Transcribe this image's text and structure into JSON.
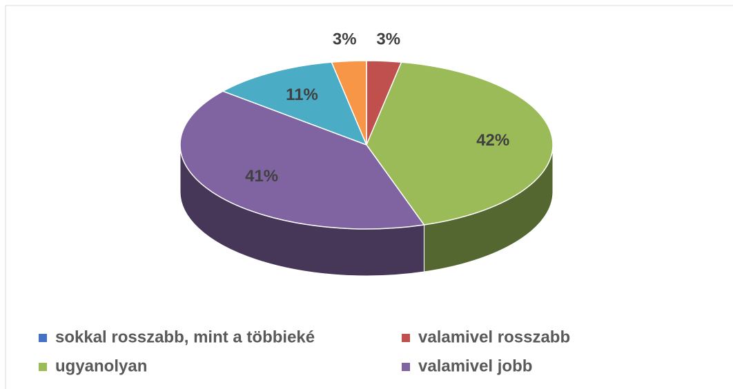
{
  "chart_data": {
    "type": "pie3d",
    "categories": [
      "sokkal rosszabb, mint a többieké",
      "valamivel rosszabb",
      "ugyanolyan",
      "valamivel jobb",
      null,
      null
    ],
    "values": [
      0,
      3,
      42,
      41,
      11,
      3
    ],
    "value_labels": [
      null,
      "3%",
      "42%",
      "41%",
      "11%",
      "3%"
    ],
    "colors": [
      "#4472c4",
      "#c0504d",
      "#9bbb59",
      "#8064a2",
      "#4bacc6",
      "#f79646"
    ],
    "legend": "bottom"
  }
}
